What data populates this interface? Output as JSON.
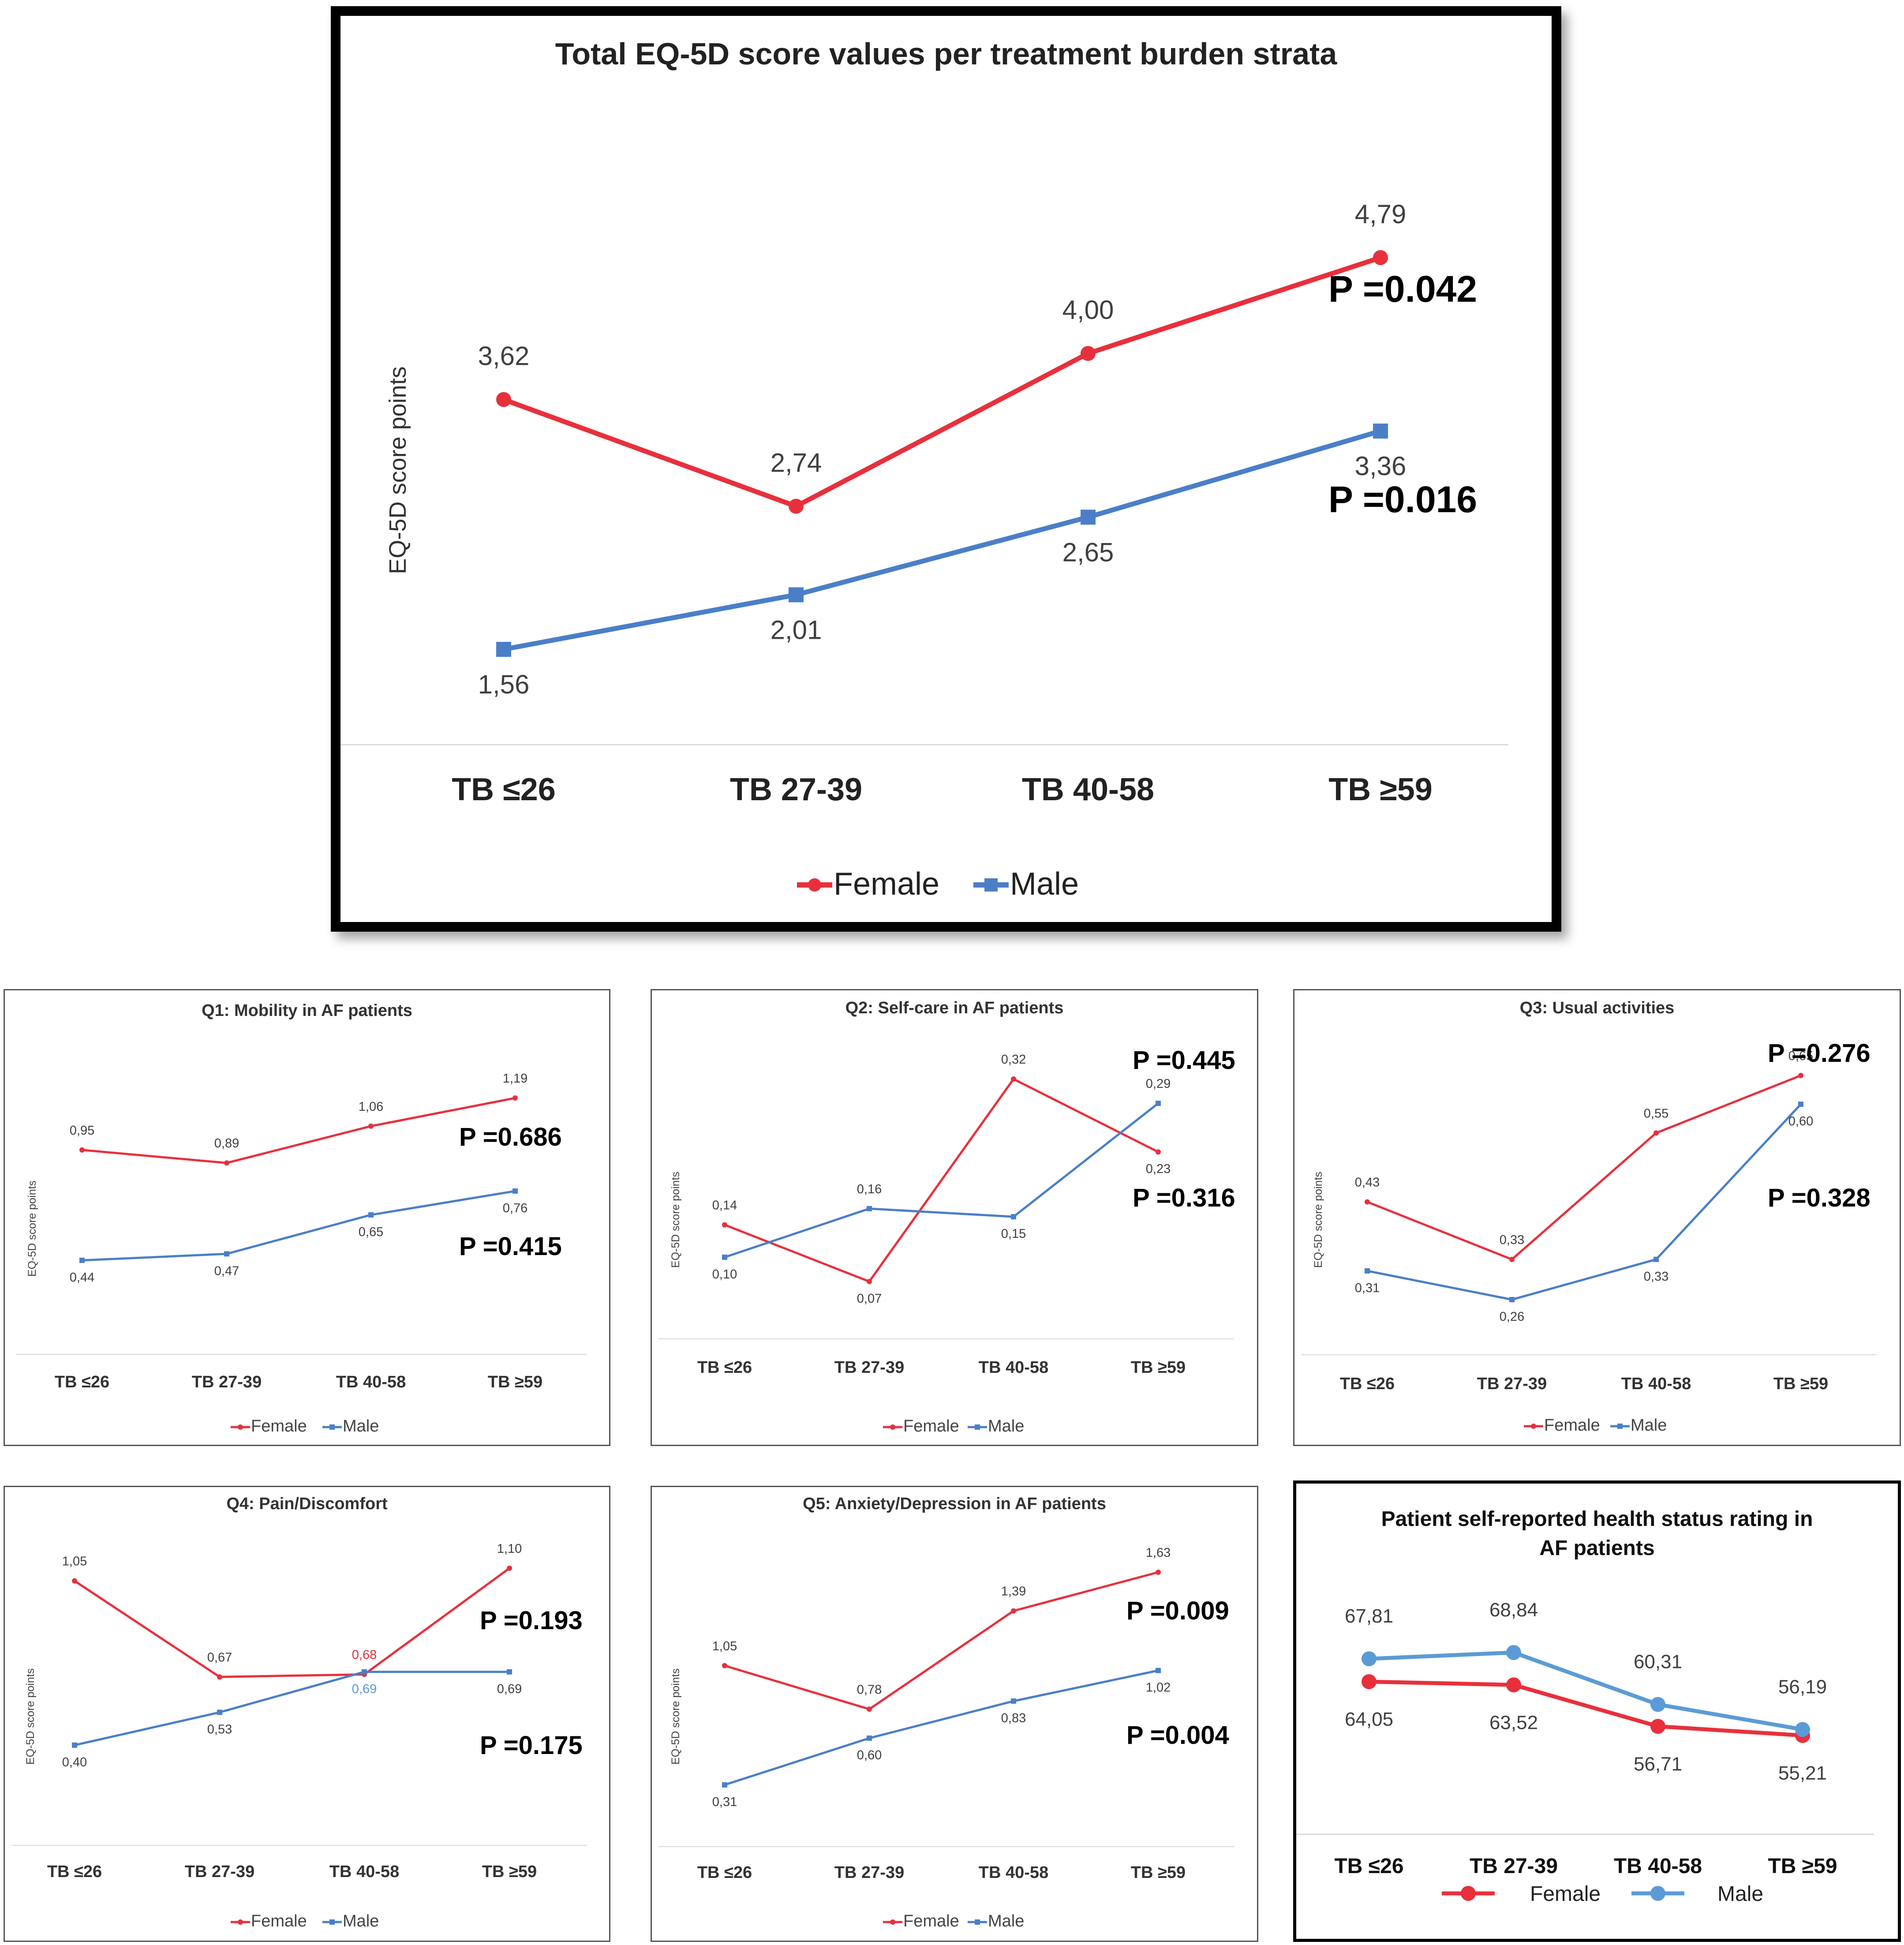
{
  "charts": [
    {
      "title": "Total EQ-5D score values per treatment burden strata",
      "ylabel": "EQ-5D score points",
      "female_label": "Female",
      "male_label": "Male",
      "p_female": "P =0.042",
      "p_male": "P =0.016"
    },
    {
      "title": "Q1: Mobility in AF patients",
      "ylabel": "EQ-5D score points",
      "female_label": "Female",
      "male_label": "Male",
      "p_female": "P =0.686",
      "p_male": "P =0.415"
    },
    {
      "title": "Q2: Self-care in AF patients",
      "ylabel": "EQ-5D score points",
      "female_label": "Female",
      "male_label": "Male",
      "p_female": "P =0.445",
      "p_male": "P =0.316"
    },
    {
      "title": "Q3: Usual activities",
      "ylabel": "EQ-5D score points",
      "female_label": "Female",
      "male_label": "Male",
      "p_female": "P =0.276",
      "p_male": "P =0.328"
    },
    {
      "title": "Q4: Pain/Discomfort",
      "ylabel": "EQ-5D score points",
      "female_label": "Female",
      "male_label": "Male",
      "p_female": "P =0.193",
      "p_male": "P =0.175"
    },
    {
      "title": "Q5: Anxiety/Depression in AF patients",
      "ylabel": "EQ-5D score points",
      "female_label": "Female",
      "male_label": "Male",
      "p_female": "P =0.009",
      "p_male": "P =0.004"
    },
    {
      "title_line1": "Patient self-reported health status rating in",
      "title_line2": "AF patients",
      "female_label": "Female",
      "male_label": "Male"
    }
  ],
  "chart_data": [
    {
      "type": "line",
      "categories": [
        "TB ≤26",
        "TB 27-39",
        "TB 40-58",
        "TB ≥59"
      ],
      "series": [
        {
          "name": "Female",
          "values": [
            3.62,
            2.74,
            4.0,
            4.79
          ],
          "labels": [
            "3,62",
            "2,74",
            "4,00",
            "4,79"
          ],
          "color": "#e8303c",
          "marker": "circle"
        },
        {
          "name": "Male",
          "values": [
            1.56,
            2.01,
            2.65,
            3.36
          ],
          "labels": [
            "1,56",
            "2,01",
            "2,65",
            "3,36"
          ],
          "color": "#4a7fc8",
          "marker": "square"
        }
      ],
      "title": "Total EQ-5D score values per treatment burden strata",
      "ylabel": "EQ-5D score points",
      "legend": "bottom"
    },
    {
      "type": "line",
      "categories": [
        "TB ≤26",
        "TB 27-39",
        "TB 40-58",
        "TB ≥59"
      ],
      "series": [
        {
          "name": "Female",
          "values": [
            0.95,
            0.89,
            1.06,
            1.19
          ],
          "labels": [
            "0,95",
            "0,89",
            "1,06",
            "1,19"
          ],
          "color": "#e8303c",
          "marker": "circle"
        },
        {
          "name": "Male",
          "values": [
            0.44,
            0.47,
            0.65,
            0.76
          ],
          "labels": [
            "0,44",
            "0,47",
            "0,65",
            "0,76"
          ],
          "color": "#4a7fc8",
          "marker": "square"
        }
      ],
      "title": "Q1: Mobility in AF patients",
      "ylabel": "EQ-5D score points",
      "legend": "bottom"
    },
    {
      "type": "line",
      "categories": [
        "TB ≤26",
        "TB 27-39",
        "TB 40-58",
        "TB ≥59"
      ],
      "series": [
        {
          "name": "Female",
          "values": [
            0.14,
            0.07,
            0.32,
            0.23
          ],
          "labels": [
            "0,14",
            "0,07",
            "0,32",
            "0,23"
          ],
          "color": "#e8303c",
          "marker": "circle"
        },
        {
          "name": "Male",
          "values": [
            0.1,
            0.16,
            0.15,
            0.29
          ],
          "labels": [
            "0,10",
            "0,16",
            "0,15",
            "0,29"
          ],
          "color": "#4a7fc8",
          "marker": "square"
        }
      ],
      "title": "Q2: Self-care in AF patients",
      "ylabel": "EQ-5D score points",
      "legend": "bottom"
    },
    {
      "type": "line",
      "categories": [
        "TB ≤26",
        "TB 27-39",
        "TB 40-58",
        "TB ≥59"
      ],
      "series": [
        {
          "name": "Female",
          "values": [
            0.43,
            0.33,
            0.55,
            0.65
          ],
          "labels": [
            "0,43",
            "0,33",
            "0,55",
            "0,65"
          ],
          "color": "#e8303c",
          "marker": "circle"
        },
        {
          "name": "Male",
          "values": [
            0.31,
            0.26,
            0.33,
            0.6
          ],
          "labels": [
            "0,31",
            "0,26",
            "0,33",
            "0,60"
          ],
          "color": "#4a7fc8",
          "marker": "square"
        }
      ],
      "title": "Q3: Usual activities",
      "ylabel": "EQ-5D score points",
      "legend": "bottom"
    },
    {
      "type": "line",
      "categories": [
        "TB ≤26",
        "TB 27-39",
        "TB 40-58",
        "TB ≥59"
      ],
      "series": [
        {
          "name": "Female",
          "values": [
            1.05,
            0.67,
            0.68,
            1.1
          ],
          "labels": [
            "1,05",
            "0,67",
            "0,68",
            "1,10"
          ],
          "color": "#e8303c",
          "marker": "circle"
        },
        {
          "name": "Male",
          "values": [
            0.4,
            0.53,
            0.69,
            0.69
          ],
          "labels": [
            "0,40",
            "0,53",
            "0,69",
            "0,69"
          ],
          "color": "#4a7fc8",
          "marker": "square"
        }
      ],
      "title": "Q4: Pain/Discomfort",
      "ylabel": "EQ-5D score points",
      "legend": "bottom"
    },
    {
      "type": "line",
      "categories": [
        "TB ≤26",
        "TB 27-39",
        "TB 40-58",
        "TB ≥59"
      ],
      "series": [
        {
          "name": "Female",
          "values": [
            1.05,
            0.78,
            1.39,
            1.63
          ],
          "labels": [
            "1,05",
            "0,78",
            "1,39",
            "1,63"
          ],
          "color": "#e8303c",
          "marker": "circle"
        },
        {
          "name": "Male",
          "values": [
            0.31,
            0.6,
            0.83,
            1.02
          ],
          "labels": [
            "0,31",
            "0,60",
            "0,83",
            "1,02"
          ],
          "color": "#4a7fc8",
          "marker": "square"
        }
      ],
      "title": "Q5: Anxiety/Depression in AF patients",
      "ylabel": "EQ-5D score points",
      "legend": "bottom"
    },
    {
      "type": "line",
      "categories": [
        "TB ≤26",
        "TB 27-39",
        "TB 40-58",
        "TB ≥59"
      ],
      "series": [
        {
          "name": "Female",
          "values": [
            64.05,
            63.52,
            56.71,
            55.21
          ],
          "labels": [
            "64,05",
            "63,52",
            "56,71",
            "55,21"
          ],
          "color": "#e8303c",
          "marker": "circle"
        },
        {
          "name": "Male",
          "values": [
            67.81,
            68.84,
            60.31,
            56.19
          ],
          "labels": [
            "67,81",
            "68,84",
            "60,31",
            "56,19"
          ],
          "color": "#5b9bd5",
          "marker": "circle"
        }
      ],
      "title": "Patient self-reported health status rating in AF patients",
      "legend": "bottom"
    }
  ]
}
